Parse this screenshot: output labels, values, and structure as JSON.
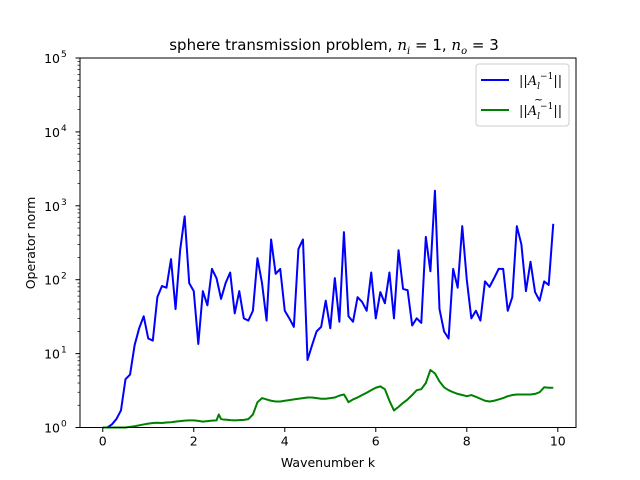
{
  "chart_data": {
    "type": "line",
    "title_prefix": "sphere transmission problem, ",
    "title_ni": "n",
    "title_ni_sub": "i",
    "title_ni_val": " = 1, ",
    "title_no": "n",
    "title_no_sub": "o",
    "title_no_val": " = 3",
    "xlabel": "Wavenumber k",
    "ylabel": "Operator norm",
    "yscale": "log",
    "xlim": [
      -0.5,
      10.4
    ],
    "ylim": [
      1,
      100000
    ],
    "x_ticks": [
      0,
      2,
      4,
      6,
      8,
      10
    ],
    "x_tick_labels": [
      "0",
      "2",
      "4",
      "6",
      "8",
      "10"
    ],
    "y_ticks": [
      1,
      10,
      100,
      1000,
      10000,
      100000
    ],
    "y_tick_labels": [
      {
        "base": "10",
        "exp": "0"
      },
      {
        "base": "10",
        "exp": "1"
      },
      {
        "base": "10",
        "exp": "2"
      },
      {
        "base": "10",
        "exp": "3"
      },
      {
        "base": "10",
        "exp": "4"
      },
      {
        "base": "10",
        "exp": "5"
      }
    ],
    "grid": false,
    "legend_position": "upper-right",
    "series": [
      {
        "name": "||A_l^{-1}||",
        "legend_main": "||A",
        "legend_sub": "l",
        "legend_sup": "−1",
        "legend_tail": "||",
        "legend_tilde": false,
        "color": "#0000ff",
        "x": [
          0.0,
          0.1,
          0.2,
          0.3,
          0.4,
          0.5,
          0.6,
          0.7,
          0.8,
          0.9,
          1.0,
          1.1,
          1.2,
          1.3,
          1.4,
          1.5,
          1.6,
          1.7,
          1.8,
          1.9,
          2.0,
          2.1,
          2.2,
          2.3,
          2.4,
          2.5,
          2.6,
          2.7,
          2.8,
          2.9,
          3.0,
          3.1,
          3.2,
          3.3,
          3.4,
          3.5,
          3.6,
          3.7,
          3.8,
          3.9,
          4.0,
          4.1,
          4.2,
          4.3,
          4.4,
          4.5,
          4.6,
          4.7,
          4.8,
          4.9,
          5.0,
          5.1,
          5.2,
          5.3,
          5.4,
          5.5,
          5.6,
          5.7,
          5.8,
          5.9,
          6.0,
          6.1,
          6.2,
          6.3,
          6.4,
          6.5,
          6.6,
          6.7,
          6.8,
          6.9,
          7.0,
          7.1,
          7.2,
          7.3,
          7.4,
          7.5,
          7.6,
          7.7,
          7.8,
          7.9,
          8.0,
          8.1,
          8.2,
          8.3,
          8.4,
          8.5,
          8.6,
          8.7,
          8.8,
          8.9,
          9.0,
          9.1,
          9.2,
          9.3,
          9.4,
          9.5,
          9.6,
          9.7,
          9.8,
          9.9
        ],
        "y": [
          1.0,
          1.0,
          1.1,
          1.3,
          1.7,
          4.5,
          5.2,
          13,
          22,
          32,
          16,
          15,
          58,
          82,
          78,
          190,
          40,
          250,
          720,
          90,
          70,
          13.5,
          70,
          45,
          140,
          105,
          55,
          90,
          125,
          35,
          70,
          30,
          28,
          38,
          195,
          90,
          28,
          350,
          120,
          140,
          38,
          30,
          23,
          260,
          350,
          8.2,
          13,
          20,
          23,
          52,
          22,
          105,
          27,
          440,
          32,
          27,
          58,
          50,
          38,
          125,
          30,
          68,
          48,
          125,
          30,
          250,
          75,
          72,
          24,
          30,
          26,
          380,
          130,
          1600,
          40,
          20,
          16,
          140,
          78,
          530,
          100,
          30,
          38,
          28,
          95,
          80,
          105,
          140,
          140,
          38,
          58,
          530,
          300,
          70,
          175,
          68,
          52,
          95,
          85,
          570
        ]
      },
      {
        "name": "||Ã_l^{-1}||",
        "legend_main": "||A",
        "legend_sub": "l",
        "legend_sup": "−1",
        "legend_tail": "||",
        "legend_tilde": true,
        "color": "#008000",
        "x": [
          0.0,
          0.1,
          0.2,
          0.3,
          0.4,
          0.5,
          0.6,
          0.7,
          0.8,
          0.9,
          1.0,
          1.1,
          1.2,
          1.3,
          1.4,
          1.5,
          1.6,
          1.7,
          1.8,
          1.9,
          2.0,
          2.1,
          2.2,
          2.3,
          2.4,
          2.5,
          2.55,
          2.6,
          2.65,
          2.7,
          2.8,
          2.9,
          3.0,
          3.1,
          3.2,
          3.3,
          3.4,
          3.5,
          3.6,
          3.7,
          3.8,
          3.9,
          4.0,
          4.1,
          4.2,
          4.3,
          4.4,
          4.5,
          4.6,
          4.7,
          4.8,
          4.9,
          5.0,
          5.1,
          5.2,
          5.3,
          5.35,
          5.4,
          5.5,
          5.6,
          5.7,
          5.8,
          5.9,
          6.0,
          6.1,
          6.2,
          6.3,
          6.4,
          6.5,
          6.6,
          6.7,
          6.8,
          6.9,
          7.0,
          7.1,
          7.2,
          7.3,
          7.4,
          7.5,
          7.6,
          7.7,
          7.8,
          7.9,
          8.0,
          8.1,
          8.2,
          8.3,
          8.4,
          8.5,
          8.6,
          8.7,
          8.8,
          8.9,
          9.0,
          9.1,
          9.2,
          9.3,
          9.4,
          9.5,
          9.6,
          9.7,
          9.8,
          9.9
        ],
        "y": [
          1.0,
          1.0,
          1.0,
          1.0,
          1.0,
          1.0,
          1.02,
          1.04,
          1.07,
          1.1,
          1.13,
          1.15,
          1.16,
          1.15,
          1.17,
          1.18,
          1.2,
          1.22,
          1.24,
          1.25,
          1.25,
          1.23,
          1.2,
          1.22,
          1.24,
          1.25,
          1.5,
          1.3,
          1.28,
          1.28,
          1.26,
          1.25,
          1.26,
          1.27,
          1.3,
          1.5,
          2.2,
          2.5,
          2.4,
          2.3,
          2.25,
          2.25,
          2.3,
          2.35,
          2.4,
          2.45,
          2.5,
          2.55,
          2.55,
          2.5,
          2.45,
          2.45,
          2.5,
          2.55,
          2.7,
          2.8,
          2.5,
          2.2,
          2.4,
          2.55,
          2.75,
          2.95,
          3.2,
          3.45,
          3.6,
          3.3,
          2.3,
          1.7,
          1.9,
          2.15,
          2.4,
          2.75,
          3.2,
          3.3,
          4.0,
          6.0,
          5.4,
          4.2,
          3.5,
          3.2,
          3.0,
          2.85,
          2.75,
          2.65,
          2.75,
          2.6,
          2.45,
          2.3,
          2.25,
          2.3,
          2.4,
          2.5,
          2.65,
          2.75,
          2.8,
          2.8,
          2.8,
          2.8,
          2.85,
          3.0,
          3.5,
          3.45,
          3.45
        ]
      }
    ]
  }
}
